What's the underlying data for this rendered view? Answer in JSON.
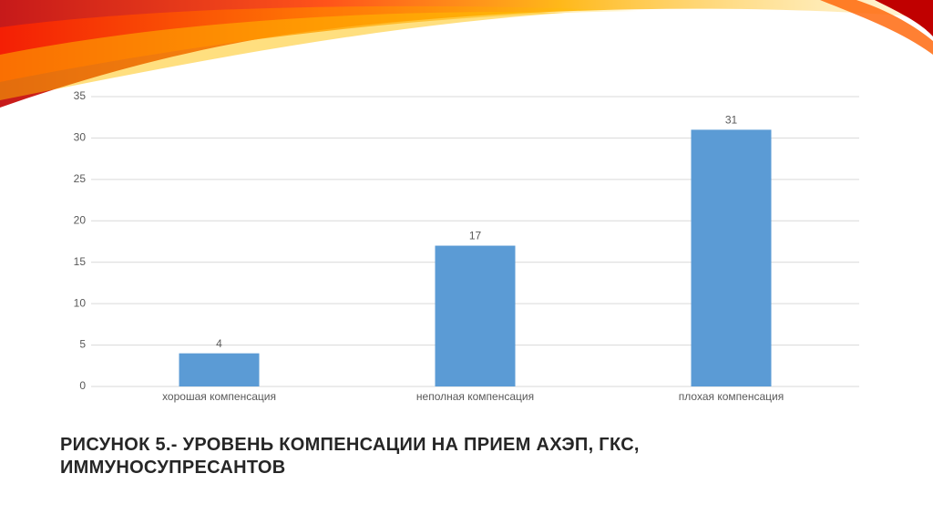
{
  "chart_data": {
    "type": "bar",
    "title": "РИСУНОК 5.- УРОВЕНЬ КОМПЕНСАЦИИ НА ПРИЕМ АХЭП, ГКС, ИММУНОСУПРЕСАНТОВ",
    "categories": [
      "хорошая компенсация",
      "неполная компенсация",
      "плохая компенсация"
    ],
    "values": [
      4,
      17,
      31
    ],
    "color": "#5b9bd5",
    "ylim": [
      0,
      35
    ],
    "yticks": [
      0,
      5,
      10,
      15,
      20,
      25,
      30,
      35
    ],
    "grid": true
  }
}
